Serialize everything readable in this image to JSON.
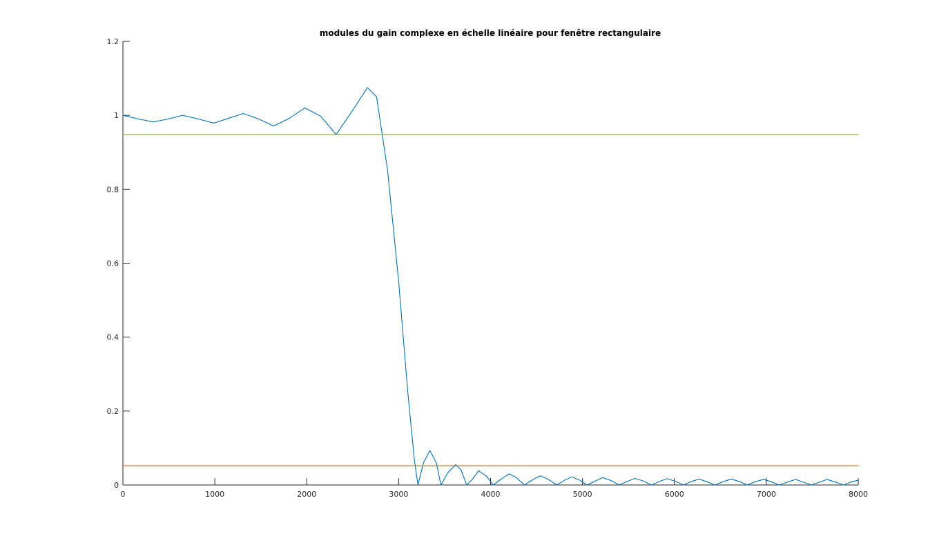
{
  "chart_data": {
    "type": "line",
    "title": "modules du gain complexe en échelle linéaire pour fenêtre rectangulaire",
    "xlabel": "",
    "ylabel": "",
    "xlim": [
      0,
      8000
    ],
    "ylim": [
      0,
      1.2
    ],
    "xticks": [
      "0",
      "1000",
      "2000",
      "3000",
      "4000",
      "5000",
      "6000",
      "7000",
      "8000"
    ],
    "yticks": [
      "0",
      "0.2",
      "0.4",
      "0.6",
      "0.8",
      "1",
      "1.2"
    ],
    "grid": false,
    "legend": "none",
    "series": [
      {
        "color": "#0072bd",
        "x": [
          0,
          170,
          330,
          490,
          650,
          820,
          990,
          1150,
          1310,
          1480,
          1640,
          1810,
          1980,
          2150,
          2320,
          2490,
          2660,
          2760,
          2880,
          3000,
          3100,
          3170,
          3210,
          3270,
          3340,
          3410,
          3460,
          3540,
          3620,
          3680,
          3740,
          3800,
          3870,
          3950,
          4030,
          4110,
          4200,
          4280,
          4370,
          4450,
          4540,
          4630,
          4720,
          4800,
          4880,
          4970,
          5050,
          5140,
          5220,
          5310,
          5400,
          5490,
          5570,
          5660,
          5750,
          5840,
          5920,
          6010,
          6100,
          6180,
          6270,
          6350,
          6440,
          6530,
          6620,
          6710,
          6790,
          6880,
          6970,
          7050,
          7140,
          7230,
          7320,
          7400,
          7490,
          7580,
          7660,
          7750,
          7840,
          7920,
          8000
        ],
        "values": [
          1.0,
          0.99,
          0.982,
          0.99,
          1.0,
          0.99,
          0.979,
          0.992,
          1.005,
          0.99,
          0.971,
          0.992,
          1.02,
          0.998,
          0.948,
          1.01,
          1.075,
          1.05,
          0.85,
          0.55,
          0.25,
          0.07,
          0.0,
          0.06,
          0.093,
          0.06,
          0.0,
          0.035,
          0.055,
          0.04,
          0.0,
          0.015,
          0.038,
          0.025,
          0.0,
          0.015,
          0.03,
          0.02,
          0.0,
          0.013,
          0.025,
          0.015,
          0.0,
          0.012,
          0.022,
          0.013,
          0.0,
          0.011,
          0.02,
          0.012,
          0.0,
          0.01,
          0.018,
          0.011,
          0.0,
          0.01,
          0.017,
          0.01,
          0.0,
          0.009,
          0.016,
          0.009,
          0.0,
          0.009,
          0.016,
          0.009,
          0.0,
          0.009,
          0.015,
          0.009,
          0.0,
          0.008,
          0.015,
          0.008,
          0.0,
          0.008,
          0.015,
          0.008,
          0.0,
          0.008,
          0.013
        ]
      },
      {
        "color": "#77ac30",
        "x": [
          0,
          8000
        ],
        "values": [
          0.948,
          0.948
        ]
      },
      {
        "color": "#d95319",
        "x": [
          0,
          8000
        ],
        "values": [
          0.052,
          0.052
        ]
      }
    ]
  }
}
